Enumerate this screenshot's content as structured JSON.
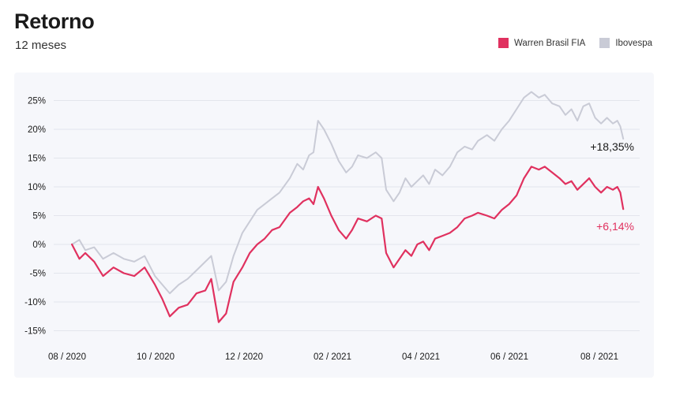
{
  "header": {
    "title": "Retorno",
    "subtitle": "12 meses"
  },
  "legend": [
    {
      "label": "Warren Brasil FIA",
      "color": "#e0315f"
    },
    {
      "label": "Ibovespa",
      "color": "#c9cbd6"
    }
  ],
  "chart_data": {
    "type": "line",
    "title": "Retorno",
    "subtitle": "12 meses",
    "xlabel": "",
    "ylabel": "",
    "x_ticks": [
      "08 / 2020",
      "10 / 2020",
      "12 / 2020",
      "02 / 2021",
      "04 / 2021",
      "06 / 2021",
      "08 / 2021"
    ],
    "y_ticks": [
      "25%",
      "20%",
      "15%",
      "10%",
      "5%",
      "0%",
      "-5%",
      "-10%",
      "-15%"
    ],
    "y_tick_values": [
      25,
      20,
      15,
      10,
      5,
      0,
      -5,
      -10,
      -15
    ],
    "ylim": [
      -16.5,
      28
    ],
    "xlim": [
      "2020-07-27",
      "2021-08-20"
    ],
    "grid": true,
    "legend_position": "top-right",
    "series": [
      {
        "name": "Ibovespa",
        "color": "#c9cbd6",
        "end_label": "+18,35%",
        "end_label_color": "#1a1a1a",
        "points": [
          [
            "2020-08-03",
            0
          ],
          [
            "2020-08-08",
            0.8
          ],
          [
            "2020-08-12",
            -1.0
          ],
          [
            "2020-08-18",
            -0.5
          ],
          [
            "2020-08-24",
            -2.5
          ],
          [
            "2020-08-31",
            -1.5
          ],
          [
            "2020-09-07",
            -2.5
          ],
          [
            "2020-09-14",
            -3.0
          ],
          [
            "2020-09-21",
            -2.0
          ],
          [
            "2020-09-28",
            -5.5
          ],
          [
            "2020-10-03",
            -7.0
          ],
          [
            "2020-10-08",
            -8.5
          ],
          [
            "2020-10-14",
            -7.0
          ],
          [
            "2020-10-20",
            -6.0
          ],
          [
            "2020-10-26",
            -4.5
          ],
          [
            "2020-11-01",
            -3.0
          ],
          [
            "2020-11-05",
            -2.0
          ],
          [
            "2020-11-10",
            -8.0
          ],
          [
            "2020-11-15",
            -6.5
          ],
          [
            "2020-11-20",
            -2.0
          ],
          [
            "2020-11-26",
            2.0
          ],
          [
            "2020-12-01",
            4.0
          ],
          [
            "2020-12-06",
            6.0
          ],
          [
            "2020-12-11",
            7.0
          ],
          [
            "2020-12-16",
            8.0
          ],
          [
            "2020-12-21",
            9.0
          ],
          [
            "2020-12-28",
            11.5
          ],
          [
            "2021-01-02",
            14.0
          ],
          [
            "2021-01-06",
            13.0
          ],
          [
            "2021-01-10",
            15.5
          ],
          [
            "2021-01-13",
            16.0
          ],
          [
            "2021-01-16",
            21.5
          ],
          [
            "2021-01-20",
            20.0
          ],
          [
            "2021-01-25",
            17.5
          ],
          [
            "2021-01-30",
            14.5
          ],
          [
            "2021-02-04",
            12.5
          ],
          [
            "2021-02-08",
            13.5
          ],
          [
            "2021-02-12",
            15.5
          ],
          [
            "2021-02-18",
            15.0
          ],
          [
            "2021-02-24",
            16.0
          ],
          [
            "2021-02-28",
            15.0
          ],
          [
            "2021-03-03",
            9.5
          ],
          [
            "2021-03-08",
            7.5
          ],
          [
            "2021-03-12",
            9.0
          ],
          [
            "2021-03-16",
            11.5
          ],
          [
            "2021-03-20",
            10.0
          ],
          [
            "2021-03-24",
            11.0
          ],
          [
            "2021-03-28",
            12.0
          ],
          [
            "2021-04-01",
            10.5
          ],
          [
            "2021-04-05",
            13.0
          ],
          [
            "2021-04-10",
            12.0
          ],
          [
            "2021-04-15",
            13.5
          ],
          [
            "2021-04-20",
            16.0
          ],
          [
            "2021-04-25",
            17.0
          ],
          [
            "2021-04-30",
            16.5
          ],
          [
            "2021-05-04",
            18.0
          ],
          [
            "2021-05-10",
            19.0
          ],
          [
            "2021-05-15",
            18.0
          ],
          [
            "2021-05-20",
            20.0
          ],
          [
            "2021-05-25",
            21.5
          ],
          [
            "2021-05-30",
            23.5
          ],
          [
            "2021-06-04",
            25.5
          ],
          [
            "2021-06-09",
            26.5
          ],
          [
            "2021-06-14",
            25.5
          ],
          [
            "2021-06-18",
            26.0
          ],
          [
            "2021-06-23",
            24.5
          ],
          [
            "2021-06-28",
            24.0
          ],
          [
            "2021-07-02",
            22.5
          ],
          [
            "2021-07-06",
            23.5
          ],
          [
            "2021-07-10",
            21.5
          ],
          [
            "2021-07-14",
            24.0
          ],
          [
            "2021-07-18",
            24.5
          ],
          [
            "2021-07-22",
            22.0
          ],
          [
            "2021-07-26",
            21.0
          ],
          [
            "2021-07-30",
            22.0
          ],
          [
            "2021-08-03",
            21.0
          ],
          [
            "2021-08-06",
            21.5
          ],
          [
            "2021-08-08",
            20.5
          ],
          [
            "2021-08-10",
            18.35
          ]
        ]
      },
      {
        "name": "Warren Brasil FIA",
        "color": "#e0315f",
        "end_label": "+6,14%",
        "end_label_color": "#e0315f",
        "points": [
          [
            "2020-08-03",
            0
          ],
          [
            "2020-08-08",
            -2.5
          ],
          [
            "2020-08-12",
            -1.5
          ],
          [
            "2020-08-18",
            -3.0
          ],
          [
            "2020-08-24",
            -5.5
          ],
          [
            "2020-08-31",
            -4.0
          ],
          [
            "2020-09-07",
            -5.0
          ],
          [
            "2020-09-14",
            -5.5
          ],
          [
            "2020-09-21",
            -4.0
          ],
          [
            "2020-09-28",
            -7.0
          ],
          [
            "2020-10-03",
            -9.5
          ],
          [
            "2020-10-08",
            -12.5
          ],
          [
            "2020-10-14",
            -11.0
          ],
          [
            "2020-10-20",
            -10.5
          ],
          [
            "2020-10-26",
            -8.5
          ],
          [
            "2020-11-01",
            -8.0
          ],
          [
            "2020-11-05",
            -6.0
          ],
          [
            "2020-11-10",
            -13.5
          ],
          [
            "2020-11-15",
            -12.0
          ],
          [
            "2020-11-20",
            -6.5
          ],
          [
            "2020-11-26",
            -4.0
          ],
          [
            "2020-12-01",
            -1.5
          ],
          [
            "2020-12-06",
            0.0
          ],
          [
            "2020-12-11",
            1.0
          ],
          [
            "2020-12-16",
            2.5
          ],
          [
            "2020-12-21",
            3.0
          ],
          [
            "2020-12-28",
            5.5
          ],
          [
            "2021-01-02",
            6.5
          ],
          [
            "2021-01-06",
            7.5
          ],
          [
            "2021-01-10",
            8.0
          ],
          [
            "2021-01-13",
            7.0
          ],
          [
            "2021-01-16",
            10.0
          ],
          [
            "2021-01-20",
            8.0
          ],
          [
            "2021-01-25",
            5.0
          ],
          [
            "2021-01-30",
            2.5
          ],
          [
            "2021-02-04",
            1.0
          ],
          [
            "2021-02-08",
            2.5
          ],
          [
            "2021-02-12",
            4.5
          ],
          [
            "2021-02-18",
            4.0
          ],
          [
            "2021-02-24",
            5.0
          ],
          [
            "2021-02-28",
            4.5
          ],
          [
            "2021-03-03",
            -1.5
          ],
          [
            "2021-03-08",
            -4.0
          ],
          [
            "2021-03-12",
            -2.5
          ],
          [
            "2021-03-16",
            -1.0
          ],
          [
            "2021-03-20",
            -2.0
          ],
          [
            "2021-03-24",
            0.0
          ],
          [
            "2021-03-28",
            0.5
          ],
          [
            "2021-04-01",
            -1.0
          ],
          [
            "2021-04-05",
            1.0
          ],
          [
            "2021-04-10",
            1.5
          ],
          [
            "2021-04-15",
            2.0
          ],
          [
            "2021-04-20",
            3.0
          ],
          [
            "2021-04-25",
            4.5
          ],
          [
            "2021-04-30",
            5.0
          ],
          [
            "2021-05-04",
            5.5
          ],
          [
            "2021-05-10",
            5.0
          ],
          [
            "2021-05-15",
            4.5
          ],
          [
            "2021-05-20",
            6.0
          ],
          [
            "2021-05-25",
            7.0
          ],
          [
            "2021-05-30",
            8.5
          ],
          [
            "2021-06-04",
            11.5
          ],
          [
            "2021-06-09",
            13.5
          ],
          [
            "2021-06-14",
            13.0
          ],
          [
            "2021-06-18",
            13.5
          ],
          [
            "2021-06-23",
            12.5
          ],
          [
            "2021-06-28",
            11.5
          ],
          [
            "2021-07-02",
            10.5
          ],
          [
            "2021-07-06",
            11.0
          ],
          [
            "2021-07-10",
            9.5
          ],
          [
            "2021-07-14",
            10.5
          ],
          [
            "2021-07-18",
            11.5
          ],
          [
            "2021-07-22",
            10.0
          ],
          [
            "2021-07-26",
            9.0
          ],
          [
            "2021-07-30",
            10.0
          ],
          [
            "2021-08-03",
            9.5
          ],
          [
            "2021-08-06",
            10.0
          ],
          [
            "2021-08-08",
            9.0
          ],
          [
            "2021-08-10",
            6.14
          ]
        ]
      }
    ]
  }
}
